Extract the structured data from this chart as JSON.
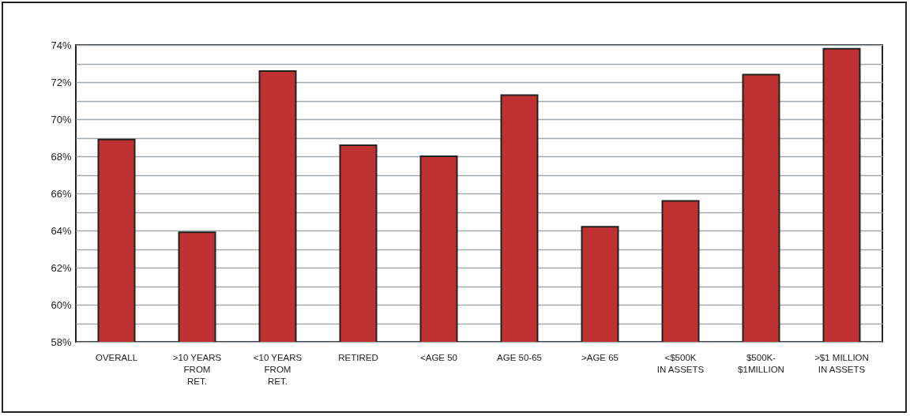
{
  "chart_data": {
    "type": "bar",
    "categories": [
      "OVERALL",
      ">10 YEARS\nFROM\nRET.",
      "<10 YEARS\nFROM\nRET.",
      "RETIRED",
      "<AGE 50",
      "AGE 50-65",
      ">AGE 65",
      "<$500K\nIN ASSETS",
      "$500K-\n$1MILLION",
      ">$1 MILLION\nIN ASSETS"
    ],
    "values": [
      68.9,
      63.9,
      72.6,
      68.6,
      68.0,
      71.3,
      64.2,
      65.6,
      72.4,
      73.8
    ],
    "color": "#c03232",
    "ylim": [
      58,
      74
    ],
    "yticks": [
      {
        "value": 58,
        "label": "58%"
      },
      {
        "value": 59,
        "label": null
      },
      {
        "value": 60,
        "label": "60%"
      },
      {
        "value": 61,
        "label": null
      },
      {
        "value": 62,
        "label": "62%"
      },
      {
        "value": 63,
        "label": null
      },
      {
        "value": 64,
        "label": "64%"
      },
      {
        "value": 65,
        "label": null
      },
      {
        "value": 66,
        "label": "66%"
      },
      {
        "value": 67,
        "label": null
      },
      {
        "value": 68,
        "label": "68%"
      },
      {
        "value": 69,
        "label": null
      },
      {
        "value": 70,
        "label": "70%"
      },
      {
        "value": 71,
        "label": null
      },
      {
        "value": 72,
        "label": "72%"
      },
      {
        "value": 73,
        "label": null
      },
      {
        "value": 74,
        "label": "74%"
      }
    ],
    "grid": true
  }
}
